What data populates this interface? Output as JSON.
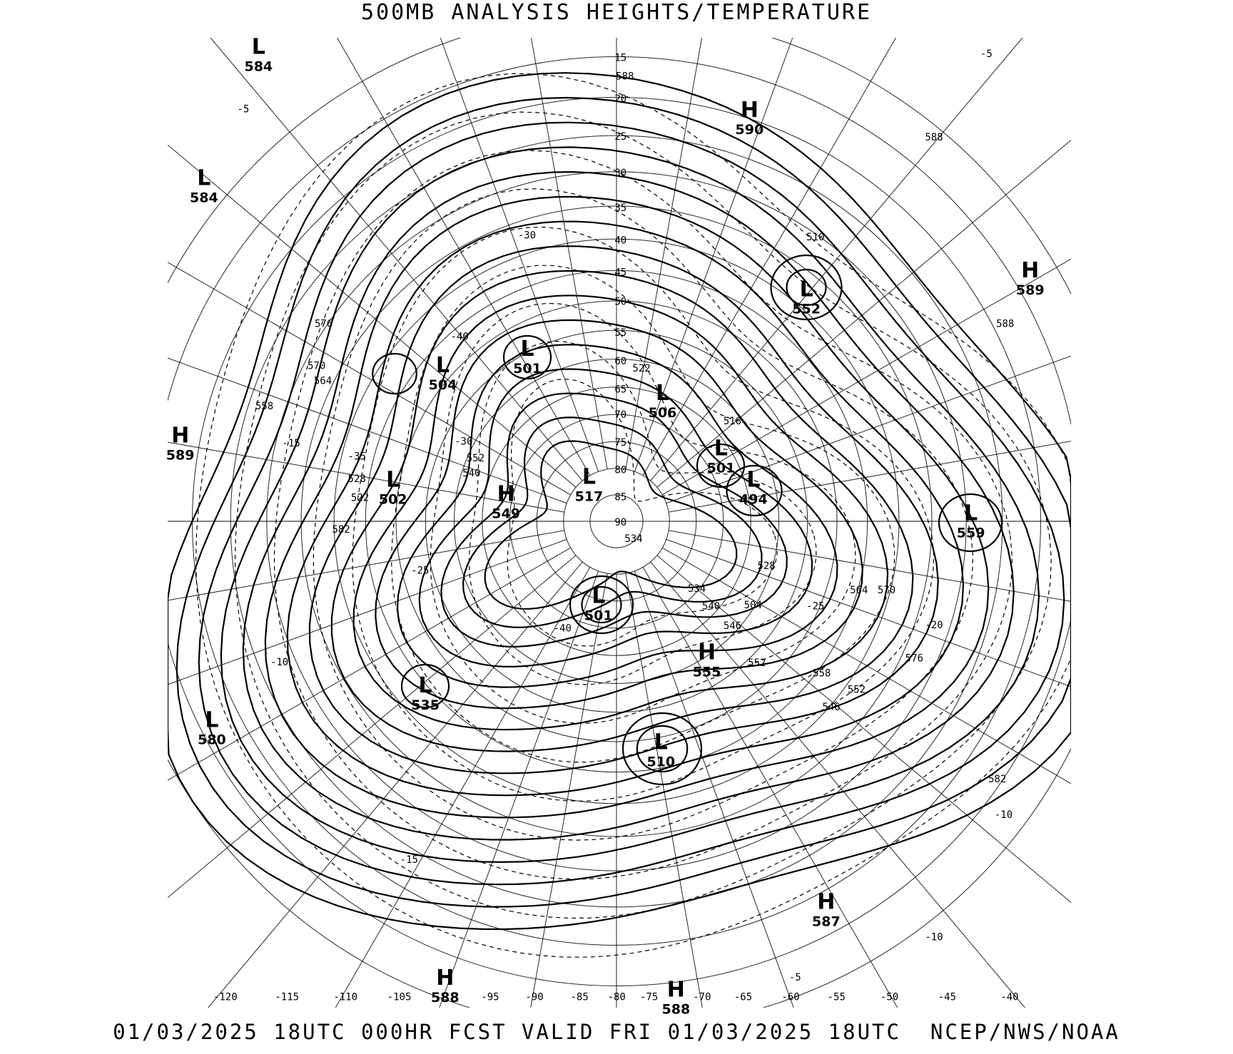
{
  "header": {
    "title": "500MB ANALYSIS  HEIGHTS/TEMPERATURE"
  },
  "footer": {
    "valid_text": "01/03/2025 18UTC 000HR FCST VALID FRI 01/03/2025 18UTC  NCEP/NWS/NOAA"
  },
  "map": {
    "projection": "polar stereographic",
    "longitude_labels": [
      "-120",
      "-115",
      "-110",
      "-105",
      "-95",
      "-90",
      "-85",
      "-80",
      "-75",
      "-70",
      "-65",
      "-60",
      "-55",
      "-50",
      "-45",
      "-40"
    ],
    "latitude_labels": [
      "15",
      "20",
      "25",
      "30",
      "35",
      "40",
      "45",
      "50",
      "55",
      "60",
      "65",
      "70",
      "75",
      "80",
      "85",
      "90"
    ],
    "pressure_centers": [
      {
        "type": "L",
        "value": "584"
      },
      {
        "type": "L",
        "value": "584"
      },
      {
        "type": "H",
        "value": "590"
      },
      {
        "type": "H",
        "value": "589"
      },
      {
        "type": "L",
        "value": "552"
      },
      {
        "type": "H",
        "value": "589"
      },
      {
        "type": "L",
        "value": "501"
      },
      {
        "type": "L",
        "value": "504"
      },
      {
        "type": "L",
        "value": "506"
      },
      {
        "type": "L",
        "value": "502"
      },
      {
        "type": "H",
        "value": "549"
      },
      {
        "type": "L",
        "value": "517"
      },
      {
        "type": "L",
        "value": "501"
      },
      {
        "type": "L",
        "value": "494"
      },
      {
        "type": "L",
        "value": "559"
      },
      {
        "type": "L",
        "value": "501"
      },
      {
        "type": "H",
        "value": "555"
      },
      {
        "type": "L",
        "value": "535"
      },
      {
        "type": "L",
        "value": "580"
      },
      {
        "type": "L",
        "value": "510"
      },
      {
        "type": "H",
        "value": "587"
      },
      {
        "type": "H",
        "value": "588"
      },
      {
        "type": "H",
        "value": "588"
      }
    ],
    "contour_labels": [
      "588",
      "588",
      "576",
      "570",
      "564",
      "558",
      "552",
      "582",
      "540",
      "534",
      "528",
      "522",
      "516",
      "510",
      "504",
      "546",
      "552",
      "558",
      "564",
      "570",
      "576",
      "582",
      "588",
      "-5",
      "-5",
      "-10",
      "-10",
      "-15",
      "-15",
      "-20",
      "-25",
      "-25",
      "-30",
      "-30",
      "-35",
      "-40",
      "-40",
      "-5",
      "-10",
      "528",
      "534",
      "540",
      "546",
      "552",
      "522"
    ]
  }
}
